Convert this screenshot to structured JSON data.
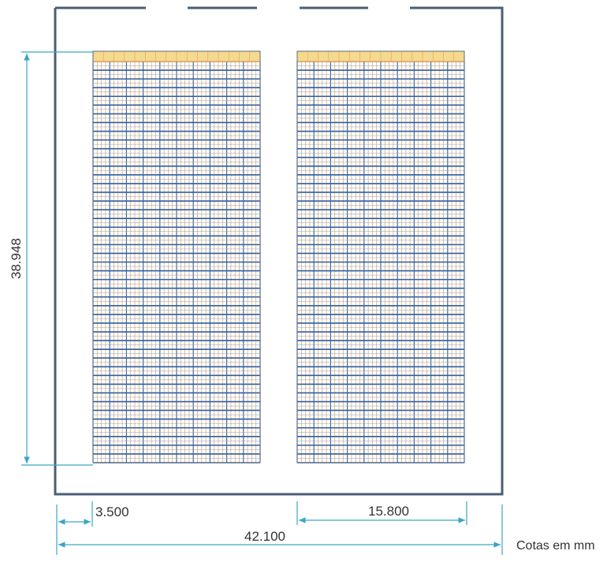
{
  "drawing": {
    "unit_note": "Cotas em mm",
    "dimensions": {
      "height": "38.948",
      "left_offset": "3.500",
      "block_width": "15.800",
      "total_width": "42.100"
    },
    "rack_blocks": 2,
    "colors": {
      "wall": "#4a5f72",
      "dimension_line": "#3aa6c4",
      "rack_blue": "#2a5fa8",
      "rack_orange": "#e7a24d",
      "rack_top": "#f5d98e",
      "text": "#333333"
    }
  }
}
